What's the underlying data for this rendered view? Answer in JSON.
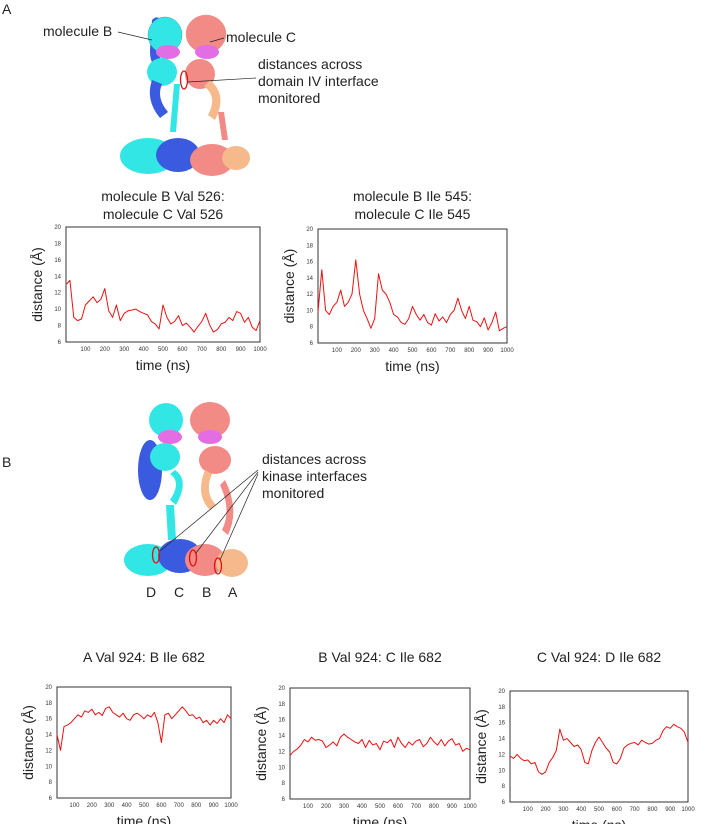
{
  "panels": {
    "a": {
      "letter": "A",
      "label_mol_b": "molecule B",
      "label_mol_c": "molecule C",
      "annotation": [
        "distances across",
        "domain IV interface",
        "monitored"
      ]
    },
    "b": {
      "letter": "B",
      "annotation": [
        "distances across",
        "kinase interfaces",
        "monitored"
      ],
      "molecule_letters": [
        "D",
        "C",
        "B",
        "A"
      ]
    }
  },
  "colors": {
    "line": "#ee1111",
    "cyan": "#33e6e6",
    "blue": "#3a5ae0",
    "salmon": "#f28a86",
    "peach": "#f6b98c",
    "magenta": "#e36ee3",
    "marker": "#dd1111"
  },
  "chart_data": [
    {
      "type": "line",
      "title": [
        "molecule B Val 526:",
        "molecule C Val 526"
      ],
      "xlabel": "time (ns)",
      "ylabel": "distance (Å)",
      "xlim": [
        0,
        1000
      ],
      "ylim": [
        6,
        20
      ],
      "xticks": [
        100,
        200,
        300,
        400,
        500,
        600,
        700,
        800,
        900,
        1000
      ],
      "yticks": [
        6,
        8,
        10,
        12,
        14,
        16,
        18,
        20
      ],
      "x_step": 20,
      "values": [
        13,
        13.5,
        9,
        8.6,
        8.8,
        10.5,
        11,
        11.5,
        10.8,
        11.2,
        12.5,
        9.8,
        9,
        10.5,
        8.6,
        9.5,
        9.8,
        9.9,
        10,
        9.7,
        9.5,
        9.3,
        8.5,
        8.2,
        7.6,
        10.5,
        9,
        8.2,
        8.5,
        9.2,
        8,
        8.3,
        7.8,
        7.2,
        7.9,
        8.5,
        9.5,
        8.1,
        7.2,
        7.5,
        8.2,
        8.4,
        9,
        8.6,
        9.7,
        9.5,
        8.4,
        9,
        7.8,
        7.4,
        8.6
      ]
    },
    {
      "type": "line",
      "title": [
        "molecule B Ile 545:",
        "molecule C Ile 545"
      ],
      "xlabel": "time (ns)",
      "ylabel": "distance (Å)",
      "xlim": [
        0,
        1000
      ],
      "ylim": [
        6,
        20
      ],
      "xticks": [
        100,
        200,
        300,
        400,
        500,
        600,
        700,
        800,
        900,
        1000
      ],
      "yticks": [
        6,
        8,
        10,
        12,
        14,
        16,
        18,
        20
      ],
      "x_step": 20,
      "values": [
        9.8,
        15,
        10,
        9.5,
        10.5,
        11,
        12.5,
        10.5,
        11,
        12,
        16.2,
        12,
        10,
        9,
        7.8,
        9,
        14.5,
        12.5,
        12,
        11,
        9.5,
        9.2,
        8.5,
        8.3,
        9,
        10.5,
        9.5,
        8.8,
        9.5,
        8.5,
        8.2,
        9.6,
        8.7,
        9.2,
        8.5,
        9.5,
        10,
        11.5,
        10,
        9,
        10.5,
        8.8,
        8.6,
        8,
        9.1,
        7.6,
        8.5,
        9.8,
        7.5,
        7.8,
        8
      ]
    },
    {
      "type": "line",
      "title": [
        "A Val 924: B Ile 682"
      ],
      "xlabel": "time (ns)",
      "ylabel": "distance (Å)",
      "xlim": [
        0,
        1000
      ],
      "ylim": [
        6,
        20
      ],
      "xticks": [
        100,
        200,
        300,
        400,
        500,
        600,
        700,
        800,
        900,
        1000
      ],
      "yticks": [
        6,
        8,
        10,
        12,
        14,
        16,
        18,
        20
      ],
      "x_step": 20,
      "values": [
        14,
        12,
        15,
        15.2,
        15.5,
        16,
        16.5,
        16.2,
        17,
        16.8,
        17.2,
        16.5,
        16.8,
        16.4,
        17.3,
        17.5,
        16.8,
        16.5,
        16.2,
        16.7,
        16,
        15.8,
        16.5,
        16.7,
        16.4,
        16,
        16.5,
        16.2,
        16.8,
        15.5,
        13,
        16.5,
        16.7,
        16,
        16.5,
        17,
        17.5,
        17,
        16.4,
        16.5,
        16,
        16.2,
        15.5,
        15.8,
        15.2,
        15.8,
        15.4,
        16,
        15.5,
        16.5,
        16
      ]
    },
    {
      "type": "line",
      "title": [
        "B Val 924: C Ile 682"
      ],
      "xlabel": "time (ns)",
      "ylabel": "distance (Å)",
      "xlim": [
        0,
        1000
      ],
      "ylim": [
        6,
        20
      ],
      "xticks": [
        100,
        200,
        300,
        400,
        500,
        600,
        700,
        800,
        900,
        1000
      ],
      "yticks": [
        6,
        8,
        10,
        12,
        14,
        16,
        18,
        20
      ],
      "x_step": 20,
      "values": [
        11.5,
        12,
        12.3,
        12.8,
        13.5,
        13.2,
        13.8,
        13.4,
        13.5,
        13.3,
        12.5,
        12.8,
        13.2,
        12.7,
        13.8,
        14.2,
        13.8,
        13.5,
        13.2,
        13,
        13.5,
        12.5,
        13.4,
        12.8,
        13,
        12.2,
        13.3,
        13.1,
        13.5,
        12.5,
        13.8,
        13,
        12.5,
        13.2,
        12.8,
        13.3,
        13.5,
        12.6,
        13,
        13.8,
        13.2,
        12.8,
        13.5,
        12.7,
        13.3,
        13.6,
        12.8,
        13,
        12,
        12.4,
        12.2
      ]
    },
    {
      "type": "line",
      "title": [
        "C Val 924: D Ile 682"
      ],
      "xlabel": "time (ns)",
      "ylabel": "distance (Å)",
      "xlim": [
        0,
        1000
      ],
      "ylim": [
        6,
        20
      ],
      "xticks": [
        100,
        200,
        300,
        400,
        500,
        600,
        700,
        800,
        900,
        1000
      ],
      "yticks": [
        6,
        8,
        10,
        12,
        14,
        16,
        18,
        20
      ],
      "x_step": 20,
      "values": [
        11.8,
        11.5,
        12,
        11.5,
        11.2,
        11.3,
        10.8,
        11,
        9.8,
        9.5,
        9.8,
        11,
        11.6,
        12.5,
        15.2,
        13.8,
        14,
        13.5,
        13,
        13.2,
        12.6,
        11,
        10.8,
        12.5,
        13.5,
        14.2,
        13.5,
        12.8,
        12.3,
        11,
        10.8,
        11.5,
        12.8,
        13.2,
        13.4,
        13.5,
        13.2,
        13.8,
        13.5,
        13.3,
        13.4,
        13.8,
        14,
        15,
        15.5,
        15.3,
        15.8,
        15.5,
        15.3,
        14.8,
        13.5
      ]
    }
  ]
}
